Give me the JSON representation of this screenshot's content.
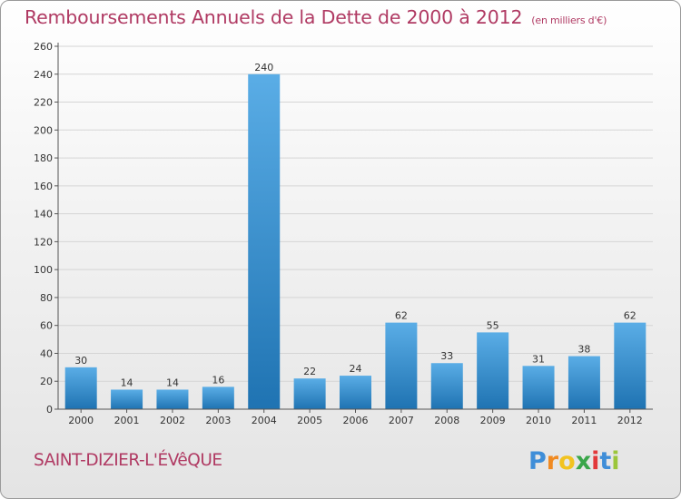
{
  "header": {
    "title": "Remboursements Annuels de la Dette de 2000 à 2012",
    "unit": "(en milliers d'€)"
  },
  "footer": {
    "commune": "SAINT-DIZIER-L'ÉVêQUE",
    "logo_text": "Proxiti"
  },
  "colors": {
    "title": "#b03a63",
    "bar_light": "#5aade6",
    "bar_dark": "#1f73b2",
    "grid": "#d5d5d5"
  },
  "chart_data": {
    "type": "bar",
    "title": "Remboursements Annuels de la Dette de 2000 à 2012",
    "xlabel": "",
    "ylabel": "",
    "ylim": [
      0,
      260
    ],
    "yticks": [
      0,
      20,
      40,
      60,
      80,
      100,
      120,
      140,
      160,
      180,
      200,
      220,
      240,
      260
    ],
    "grid": true,
    "categories": [
      "2000",
      "2001",
      "2002",
      "2003",
      "2004",
      "2005",
      "2006",
      "2007",
      "2008",
      "2009",
      "2010",
      "2011",
      "2012"
    ],
    "values": [
      30,
      14,
      14,
      16,
      240,
      22,
      24,
      62,
      33,
      55,
      31,
      38,
      62
    ]
  }
}
